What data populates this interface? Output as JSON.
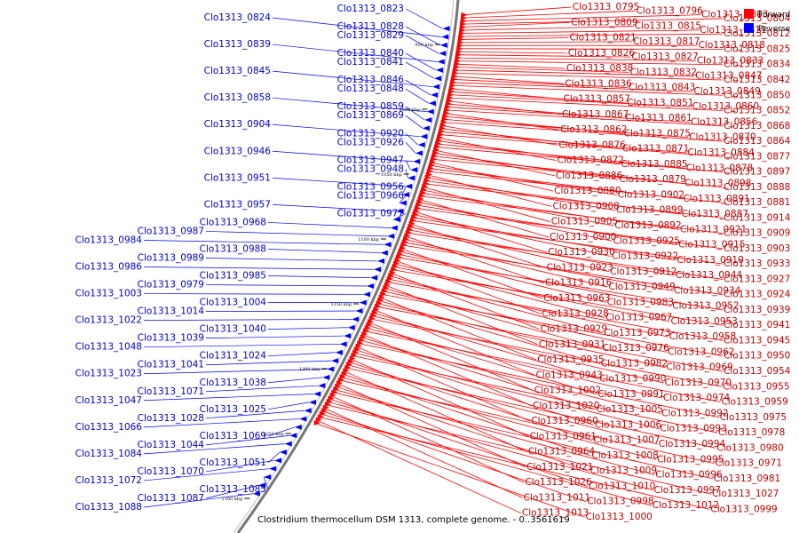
{
  "caption": "Clostridium thermocellum DSM 1313, complete genome. - 0..3561619",
  "legend": [
    {
      "label": "Forward",
      "color": "#ff0000"
    },
    {
      "label": "Reverse",
      "color": "#0000ff"
    }
  ],
  "ticks": [
    "950 kbp",
    "1000 kbp",
    "1050 kbp",
    "1100 kbp",
    "1150 kbp",
    "1200 kbp",
    "1250 kbp",
    "1300 kbp"
  ],
  "reverse_genes": [
    "Clo1313_0823",
    "Clo1313_0824",
    "Clo1313_0828",
    "Clo1313_0829",
    "Clo1313_0839",
    "Clo1313_0840",
    "Clo1313_0841",
    "Clo1313_0845",
    "Clo1313_0846",
    "Clo1313_0848",
    "Clo1313_0858",
    "Clo1313_0859",
    "Clo1313_0869",
    "Clo1313_0904",
    "Clo1313_0920",
    "Clo1313_0926",
    "Clo1313_0946",
    "Clo1313_0947",
    "Clo1313_0948",
    "Clo1313_0951",
    "Clo1313_0956",
    "Clo1313_0966",
    "Clo1313_0957",
    "Clo1313_0977",
    "Clo1313_0968",
    "Clo1313_0987",
    "Clo1313_0984",
    "Clo1313_0988",
    "Clo1313_0989",
    "Clo1313_0986",
    "Clo1313_0985",
    "Clo1313_0979",
    "Clo1313_1003",
    "Clo1313_1004",
    "Clo1313_1014",
    "Clo1313_1022",
    "Clo1313_1040",
    "Clo1313_1039",
    "Clo1313_1048",
    "Clo1313_1024",
    "Clo1313_1041",
    "Clo1313_1023",
    "Clo1313_1038",
    "Clo1313_1071",
    "Clo1313_1047",
    "Clo1313_1025",
    "Clo1313_1028",
    "Clo1313_1066",
    "Clo1313_1069",
    "Clo1313_1044",
    "Clo1313_1084",
    "Clo1313_1051",
    "Clo1313_1070",
    "Clo1313_1072",
    "Clo1313_1085",
    "Clo1313_1087",
    "Clo1313_1088"
  ],
  "forward_genes": [
    "Clo1313_0795",
    "Clo1313_0796",
    "Clo1313_0803",
    "Clo1313_0804",
    "Clo1313_0809",
    "Clo1313_0815",
    "Clo1313_0811",
    "Clo1313_0812",
    "Clo1313_0821",
    "Clo1313_0817",
    "Clo1313_0818",
    "Clo1313_0825",
    "Clo1313_0826",
    "Clo1313_0827",
    "Clo1313_0833",
    "Clo1313_0834",
    "Clo1313_0838",
    "Clo1313_0832",
    "Clo1313_0847",
    "Clo1313_0842",
    "Clo1313_0836",
    "Clo1313_0843",
    "Clo1313_0849",
    "Clo1313_0850",
    "Clo1313_0857",
    "Clo1313_0851",
    "Clo1313_0860",
    "Clo1313_0852",
    "Clo1313_0867",
    "Clo1313_0861",
    "Clo1313_0856",
    "Clo1313_0868",
    "Clo1313_0862",
    "Clo1313_0875",
    "Clo1313_0870",
    "Clo1313_0864",
    "Clo1313_0876",
    "Clo1313_0871",
    "Clo1313_0884",
    "Clo1313_0877",
    "Clo1313_0872",
    "Clo1313_0885",
    "Clo1313_0878",
    "Clo1313_0897",
    "Clo1313_0886",
    "Clo1313_0879",
    "Clo1313_0898",
    "Clo1313_0888",
    "Clo1313_0880",
    "Clo1313_0902",
    "Clo1313_0891",
    "Clo1313_0881",
    "Clo1313_0908",
    "Clo1313_0899",
    "Clo1313_0887",
    "Clo1313_0914",
    "Clo1313_0905",
    "Clo1313_0892",
    "Clo1313_0921",
    "Clo1313_0909",
    "Clo1313_0900",
    "Clo1313_0925",
    "Clo1313_0915",
    "Clo1313_0903",
    "Clo1313_0930",
    "Clo1313_0922",
    "Clo1313_0910",
    "Clo1313_0933",
    "Clo1313_0923",
    "Clo1313_0912",
    "Clo1313_0944",
    "Clo1313_0927",
    "Clo1313_0916",
    "Clo1313_0949",
    "Clo1313_0934",
    "Clo1313_0924",
    "Clo1313_0963",
    "Clo1313_0983",
    "Clo1313_0952",
    "Clo1313_0939",
    "Clo1313_0928",
    "Clo1313_0967",
    "Clo1313_0953",
    "Clo1313_0941",
    "Clo1313_0929",
    "Clo1313_0973",
    "Clo1313_0958",
    "Clo1313_0945",
    "Clo1313_0931",
    "Clo1313_0976",
    "Clo1313_0962",
    "Clo1313_0950",
    "Clo1313_0935",
    "Clo1313_0982",
    "Clo1313_0969",
    "Clo1313_0954",
    "Clo1313_0943",
    "Clo1313_0990",
    "Clo1313_0970",
    "Clo1313_0955",
    "Clo1313_1002",
    "Clo1313_0991",
    "Clo1313_0974",
    "Clo1313_0959",
    "Clo1313_1020",
    "Clo1313_1005",
    "Clo1313_0992",
    "Clo1313_0975",
    "Clo1313_0960",
    "Clo1313_1006",
    "Clo1313_0993",
    "Clo1313_0978",
    "Clo1313_0961",
    "Clo1313_1007",
    "Clo1313_0994",
    "Clo1313_0980",
    "Clo1313_0964",
    "Clo1313_1008",
    "Clo1313_0995",
    "Clo1313_0971",
    "Clo1313_1021",
    "Clo1313_1009",
    "Clo1313_0996",
    "Clo1313_0981",
    "Clo1313_1026",
    "Clo1313_1010",
    "Clo1313_0997",
    "Clo1313_1027",
    "Clo1313_1011",
    "Clo1313_0998",
    "Clo1313_1012",
    "Clo1313_0999",
    "Clo1313_1013",
    "Clo1313_1000"
  ]
}
